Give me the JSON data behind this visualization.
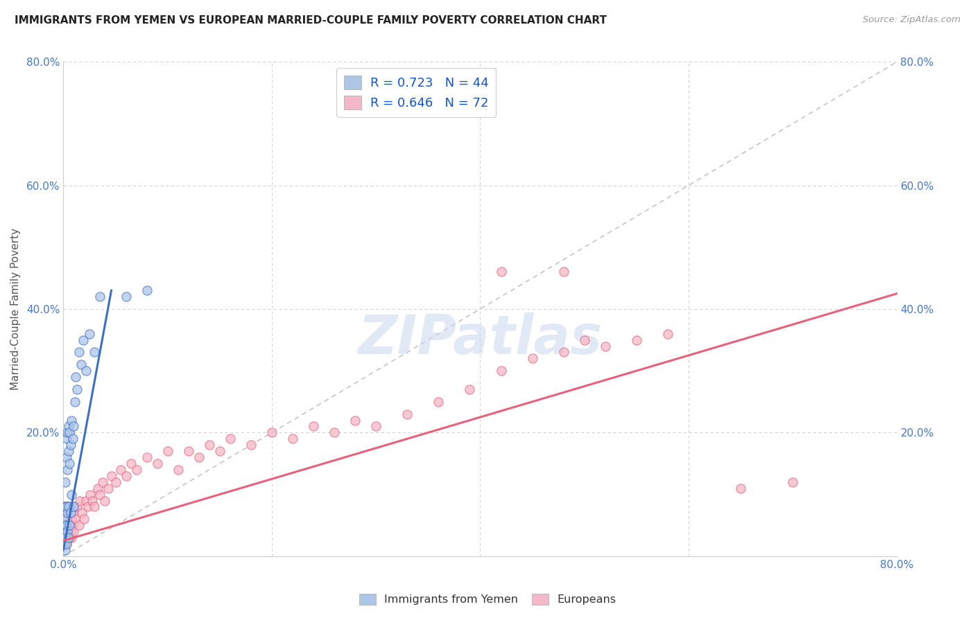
{
  "title": "IMMIGRANTS FROM YEMEN VS EUROPEAN MARRIED-COUPLE FAMILY POVERTY CORRELATION CHART",
  "source": "Source: ZipAtlas.com",
  "ylabel": "Married-Couple Family Poverty",
  "xlim": [
    0,
    0.8
  ],
  "ylim": [
    0,
    0.8
  ],
  "xticks": [
    0.0,
    0.2,
    0.4,
    0.6,
    0.8
  ],
  "yticks": [
    0.0,
    0.2,
    0.4,
    0.6,
    0.8
  ],
  "xticklabels": [
    "0.0%",
    "",
    "",
    "",
    "80.0%"
  ],
  "yticklabels": [
    "",
    "20.0%",
    "40.0%",
    "60.0%",
    "80.0%"
  ],
  "right_yticklabels": [
    "20.0%",
    "40.0%",
    "60.0%",
    "80.0%"
  ],
  "right_yticks": [
    0.2,
    0.4,
    0.6,
    0.8
  ],
  "legend_labels": [
    "Immigrants from Yemen",
    "Europeans"
  ],
  "R_yemen": 0.723,
  "N_yemen": 44,
  "R_european": 0.646,
  "N_european": 72,
  "color_yemen": "#aec6e8",
  "color_european": "#f5b8c8",
  "line_color_yemen": "#3a6fc4",
  "line_color_european": "#e8607a",
  "diagonal_color": "#bbbbbb",
  "background_color": "#ffffff",
  "grid_color": "#cccccc",
  "title_color": "#222222",
  "source_color": "#999999",
  "watermark": "ZIPatlas",
  "yemen_scatter_x": [
    0.001,
    0.001,
    0.001,
    0.001,
    0.002,
    0.002,
    0.002,
    0.002,
    0.002,
    0.003,
    0.003,
    0.003,
    0.003,
    0.003,
    0.004,
    0.004,
    0.004,
    0.004,
    0.005,
    0.005,
    0.005,
    0.005,
    0.006,
    0.006,
    0.006,
    0.007,
    0.007,
    0.008,
    0.008,
    0.009,
    0.01,
    0.01,
    0.011,
    0.012,
    0.013,
    0.015,
    0.017,
    0.019,
    0.022,
    0.025,
    0.03,
    0.035,
    0.06,
    0.08
  ],
  "yemen_scatter_y": [
    0.02,
    0.04,
    0.06,
    0.08,
    0.01,
    0.03,
    0.05,
    0.08,
    0.12,
    0.02,
    0.05,
    0.08,
    0.16,
    0.19,
    0.04,
    0.07,
    0.14,
    0.2,
    0.03,
    0.08,
    0.17,
    0.21,
    0.05,
    0.15,
    0.2,
    0.07,
    0.18,
    0.1,
    0.22,
    0.19,
    0.08,
    0.21,
    0.25,
    0.29,
    0.27,
    0.33,
    0.31,
    0.35,
    0.3,
    0.36,
    0.33,
    0.42,
    0.42,
    0.43
  ],
  "european_scatter_x": [
    0.001,
    0.001,
    0.002,
    0.002,
    0.003,
    0.003,
    0.003,
    0.004,
    0.004,
    0.005,
    0.005,
    0.006,
    0.006,
    0.007,
    0.007,
    0.008,
    0.008,
    0.009,
    0.01,
    0.01,
    0.012,
    0.013,
    0.015,
    0.016,
    0.018,
    0.02,
    0.022,
    0.024,
    0.026,
    0.028,
    0.03,
    0.033,
    0.035,
    0.038,
    0.04,
    0.043,
    0.046,
    0.05,
    0.055,
    0.06,
    0.065,
    0.07,
    0.08,
    0.09,
    0.1,
    0.11,
    0.12,
    0.13,
    0.14,
    0.15,
    0.16,
    0.18,
    0.2,
    0.22,
    0.24,
    0.26,
    0.28,
    0.3,
    0.33,
    0.36,
    0.39,
    0.42,
    0.45,
    0.48,
    0.5,
    0.52,
    0.55,
    0.58,
    0.42,
    0.48,
    0.65,
    0.7
  ],
  "european_scatter_y": [
    0.02,
    0.05,
    0.03,
    0.07,
    0.02,
    0.05,
    0.08,
    0.03,
    0.06,
    0.04,
    0.08,
    0.03,
    0.07,
    0.04,
    0.08,
    0.03,
    0.06,
    0.05,
    0.04,
    0.07,
    0.06,
    0.08,
    0.05,
    0.09,
    0.07,
    0.06,
    0.09,
    0.08,
    0.1,
    0.09,
    0.08,
    0.11,
    0.1,
    0.12,
    0.09,
    0.11,
    0.13,
    0.12,
    0.14,
    0.13,
    0.15,
    0.14,
    0.16,
    0.15,
    0.17,
    0.14,
    0.17,
    0.16,
    0.18,
    0.17,
    0.19,
    0.18,
    0.2,
    0.19,
    0.21,
    0.2,
    0.22,
    0.21,
    0.23,
    0.25,
    0.27,
    0.3,
    0.32,
    0.33,
    0.35,
    0.34,
    0.35,
    0.36,
    0.46,
    0.46,
    0.11,
    0.12
  ],
  "yemen_line_x": [
    0.0,
    0.046
  ],
  "yemen_line_y": [
    0.01,
    0.43
  ],
  "euro_line_x": [
    0.0,
    0.8
  ],
  "euro_line_y": [
    0.025,
    0.425
  ]
}
